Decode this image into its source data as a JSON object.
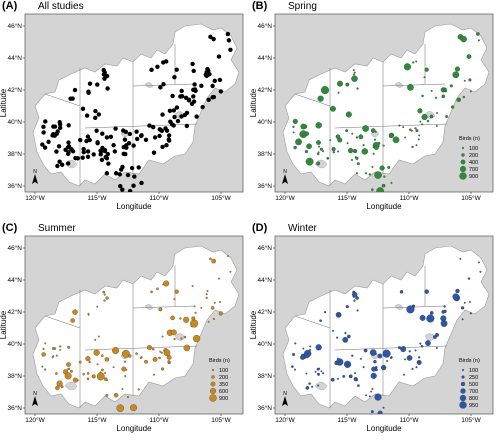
{
  "panels": [
    {
      "letter": "(A)",
      "title": "All studies",
      "has_legend": false,
      "point_color": "#000000",
      "legend": null
    },
    {
      "letter": "(B)",
      "title": "Spring",
      "has_legend": true,
      "point_color": "#2e8b3a",
      "legend": {
        "title": "Birds (n)",
        "values": [
          "100",
          "200",
          "400",
          "700",
          "900"
        ]
      }
    },
    {
      "letter": "(C)",
      "title": "Summer",
      "has_legend": true,
      "point_color": "#c8881f",
      "legend": {
        "title": "Birds (n)",
        "values": [
          "100",
          "200",
          "350",
          "600",
          "900"
        ]
      }
    },
    {
      "letter": "(D)",
      "title": "Winter",
      "has_legend": true,
      "point_color": "#2b57a6",
      "legend": {
        "title": "Birds (n)",
        "values": [
          "100",
          "250",
          "500",
          "700",
          "800",
          "950"
        ]
      }
    }
  ],
  "axes": {
    "x_label": "Longitude",
    "y_label": "Latitude",
    "x_ticks": [
      "120°W",
      "115°W",
      "110°W",
      "105°W"
    ],
    "y_ticks": [
      "46°N",
      "44°N",
      "42°N",
      "40°N",
      "38°N",
      "36°N"
    ]
  },
  "colors": {
    "ocean": "#d4d4d4",
    "land": "#ffffff",
    "border": "#9a9a9a"
  }
}
